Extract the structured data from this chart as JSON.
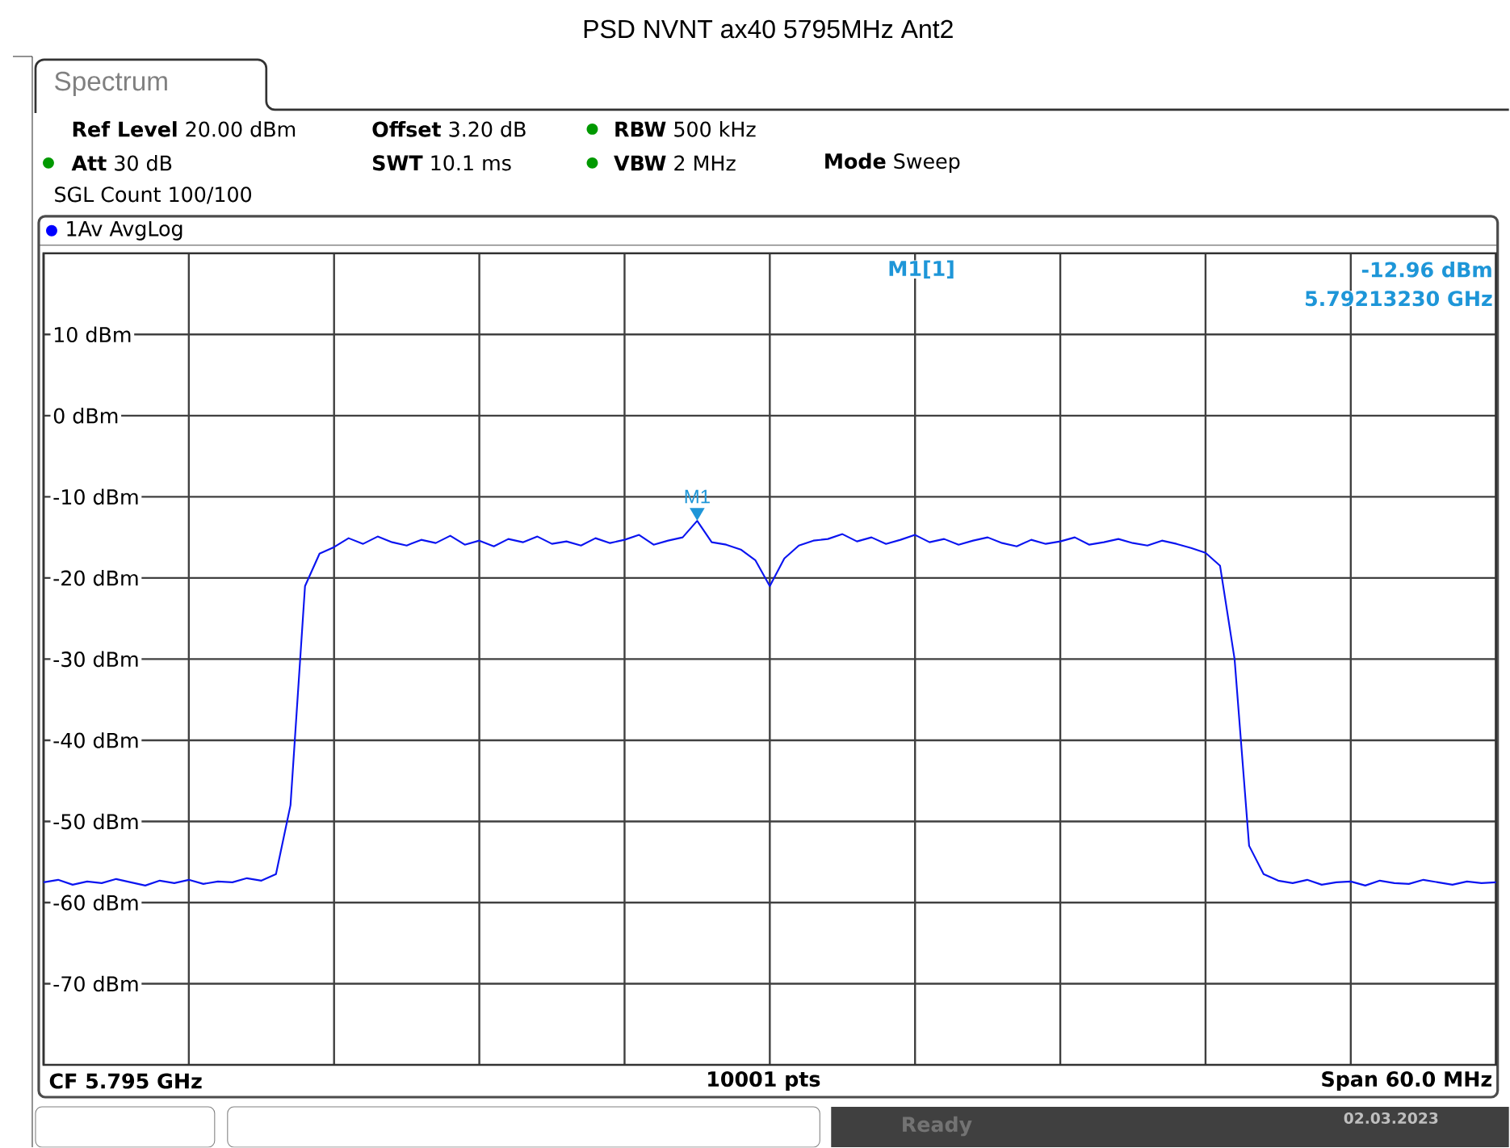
{
  "chart_data": {
    "type": "line",
    "title": "PSD NVNT ax40 5795MHz Ant2",
    "categories": [
      null,
      null,
      null,
      null,
      null,
      null,
      null,
      null,
      null,
      null,
      null,
      null,
      null,
      null,
      null,
      null,
      null,
      null,
      null,
      null,
      null,
      null,
      null,
      null,
      null,
      null,
      null,
      null,
      null,
      null,
      null,
      null,
      null,
      null,
      null,
      null,
      null,
      null,
      null,
      null,
      null,
      null,
      null,
      null,
      null,
      null,
      null,
      null,
      null,
      null,
      null,
      null,
      null,
      null,
      null,
      null,
      null,
      null,
      null,
      null,
      null,
      null,
      null,
      null,
      null,
      null,
      null,
      null,
      null,
      null,
      null,
      null,
      null,
      null,
      null,
      null,
      null,
      null,
      null,
      null,
      null,
      null,
      null,
      null,
      null,
      null,
      null,
      null,
      null,
      null,
      null,
      null,
      null,
      null,
      null,
      null,
      null,
      null,
      null,
      null,
      null
    ],
    "series": [
      {
        "color": "#0a14f0",
        "values": [
          -57.5,
          -57.2,
          -57.8,
          -57.4,
          -57.6,
          -57.1,
          -57.5,
          -57.9,
          -57.3,
          -57.6,
          -57.2,
          -57.7,
          -57.4,
          -57.5,
          -57.0,
          -57.3,
          -56.5,
          -48,
          -21,
          -17,
          -16.2,
          -15.1,
          -15.8,
          -14.9,
          -15.6,
          -16.0,
          -15.3,
          -15.7,
          -14.8,
          -15.9,
          -15.4,
          -16.1,
          -15.2,
          -15.6,
          -14.9,
          -15.8,
          -15.5,
          -16.0,
          -15.1,
          -15.7,
          -15.3,
          -14.7,
          -15.9,
          -15.4,
          -15.0,
          -12.96,
          -15.6,
          -15.9,
          -16.5,
          -17.8,
          -21.0,
          -17.6,
          -16.0,
          -15.4,
          -15.2,
          -14.6,
          -15.5,
          -15.0,
          -15.8,
          -15.3,
          -14.7,
          -15.6,
          -15.2,
          -15.9,
          -15.4,
          -15.0,
          -15.7,
          -16.1,
          -15.3,
          -15.8,
          -15.5,
          -15.0,
          -15.9,
          -15.6,
          -15.2,
          -15.7,
          -16.0,
          -15.4,
          -15.8,
          -16.3,
          -16.9,
          -18.5,
          -30,
          -53,
          -56.5,
          -57.3,
          -57.6,
          -57.2,
          -57.8,
          -57.5,
          -57.4,
          -57.9,
          -57.3,
          -57.6,
          -57.7,
          -57.2,
          -57.5,
          -57.8,
          -57.4,
          -57.6,
          -57.5
        ]
      }
    ],
    "ylim": [
      -80,
      20
    ],
    "yticks": [
      {
        "value": -70,
        "label": "-70 dBm"
      },
      {
        "value": -60,
        "label": "-60 dBm"
      },
      {
        "value": -50,
        "label": "-50 dBm"
      },
      {
        "value": -40,
        "label": "-40 dBm"
      },
      {
        "value": -30,
        "label": "-30 dBm"
      },
      {
        "value": -20,
        "label": "-20 dBm"
      },
      {
        "value": -10,
        "label": "-10 dBm"
      },
      {
        "value": 0,
        "label": "0 dBm"
      },
      {
        "value": 10,
        "label": "10 dBm"
      }
    ],
    "tick_labels": "y",
    "grid": true,
    "annotations": [
      "Spectrum",
      "**Ref Level** 20.00 dBm",
      "**Offset** 3.20 dB",
      "**RBW** 500 kHz",
      "**Att** 30 dB",
      "**SWT** 10.1 ms",
      "**VBW** 2 MHz",
      "**Mode** Sweep",
      "SGL Count 100/100",
      "1Av AvgLog",
      "M1[1]",
      "-12.96 dBm",
      "5.79213230 GHz",
      "CF 5.795 GHz",
      "10001 pts",
      "Span 60.0 MHz",
      "Ready",
      "02.03.2023",
      {
        "text": "M1",
        "y": -12.96
      }
    ]
  }
}
